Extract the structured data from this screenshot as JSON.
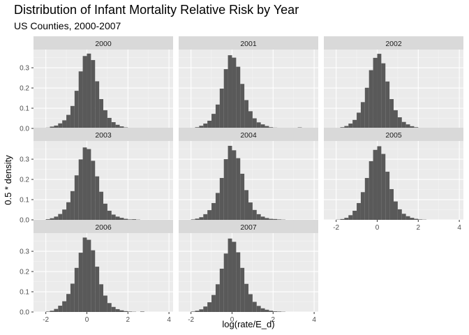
{
  "chart_data": {
    "type": "bar",
    "subtype": "faceted-histogram",
    "title": "Distribution of Infant Mortality Relative Risk by Year",
    "subtitle": "US Counties, 2000-2007",
    "xlabel": "log(rate/E_d)",
    "ylabel": "0.5 * density",
    "xlim": [
      -2.6,
      4.2
    ],
    "ylim": [
      0,
      0.39
    ],
    "x_ticks": [
      -2,
      0,
      2,
      4
    ],
    "y_ticks": [
      0.0,
      0.1,
      0.2,
      0.3
    ],
    "grid": true,
    "bar_color": "#595959",
    "panel_background": "#ebebeb",
    "strip_background": "#d9d9d9",
    "bin_start": -2.2,
    "bin_width": 0.2,
    "facets": [
      {
        "label": "2000",
        "values": [
          0.001,
          0.004,
          0.009,
          0.014,
          0.025,
          0.04,
          0.067,
          0.111,
          0.186,
          0.282,
          0.358,
          0.37,
          0.338,
          0.233,
          0.145,
          0.09,
          0.052,
          0.031,
          0.018,
          0.01,
          0.005,
          0.003,
          0.002,
          0.001,
          0.001,
          0.0,
          0.0,
          0.0,
          0.0,
          0.0,
          0.0
        ]
      },
      {
        "label": "2001",
        "values": [
          0.0,
          0.003,
          0.006,
          0.013,
          0.024,
          0.038,
          0.072,
          0.118,
          0.197,
          0.293,
          0.362,
          0.35,
          0.305,
          0.22,
          0.14,
          0.085,
          0.05,
          0.03,
          0.02,
          0.012,
          0.006,
          0.004,
          0.002,
          0.001,
          0.001,
          0.0,
          0.001,
          0.005,
          0.0,
          0.0,
          0.0
        ]
      },
      {
        "label": "2002",
        "values": [
          0.0,
          0.002,
          0.006,
          0.012,
          0.024,
          0.042,
          0.078,
          0.13,
          0.201,
          0.288,
          0.349,
          0.369,
          0.322,
          0.232,
          0.145,
          0.09,
          0.055,
          0.032,
          0.02,
          0.011,
          0.006,
          0.003,
          0.002,
          0.001,
          0.0,
          0.0,
          0.0,
          0.0,
          0.0,
          0.003,
          0.0
        ]
      },
      {
        "label": "2003",
        "values": [
          0.0,
          0.003,
          0.008,
          0.016,
          0.029,
          0.051,
          0.087,
          0.142,
          0.22,
          0.299,
          0.358,
          0.35,
          0.292,
          0.215,
          0.139,
          0.08,
          0.045,
          0.026,
          0.016,
          0.01,
          0.005,
          0.002,
          0.003,
          0.001,
          0.0,
          0.0,
          0.0,
          0.0,
          0.0,
          0.0,
          0.0
        ]
      },
      {
        "label": "2004",
        "values": [
          0.0,
          0.002,
          0.006,
          0.013,
          0.028,
          0.048,
          0.083,
          0.133,
          0.207,
          0.3,
          0.366,
          0.344,
          0.305,
          0.228,
          0.147,
          0.086,
          0.049,
          0.028,
          0.016,
          0.009,
          0.005,
          0.004,
          0.002,
          0.001,
          0.0,
          0.0,
          0.0,
          0.0,
          0.0,
          0.0,
          0.0
        ]
      },
      {
        "label": "2005",
        "values": [
          0.0,
          0.001,
          0.004,
          0.01,
          0.023,
          0.045,
          0.083,
          0.137,
          0.207,
          0.29,
          0.346,
          0.364,
          0.326,
          0.238,
          0.152,
          0.091,
          0.052,
          0.03,
          0.018,
          0.01,
          0.005,
          0.002,
          0.001,
          0.0,
          0.0,
          0.0,
          0.0,
          0.0,
          0.0,
          0.0,
          0.0
        ]
      },
      {
        "label": "2006",
        "values": [
          0.0,
          0.002,
          0.006,
          0.015,
          0.031,
          0.053,
          0.089,
          0.14,
          0.218,
          0.293,
          0.368,
          0.357,
          0.305,
          0.224,
          0.137,
          0.081,
          0.044,
          0.025,
          0.014,
          0.008,
          0.004,
          0.002,
          0.001,
          0.0,
          0.002,
          0.0,
          0.0,
          0.0,
          0.0,
          0.0,
          0.0
        ]
      },
      {
        "label": "2007",
        "values": [
          0.0,
          0.002,
          0.006,
          0.013,
          0.027,
          0.048,
          0.084,
          0.137,
          0.214,
          0.289,
          0.363,
          0.347,
          0.295,
          0.218,
          0.139,
          0.088,
          0.05,
          0.03,
          0.018,
          0.011,
          0.006,
          0.003,
          0.002,
          0.001,
          0.0,
          0.0,
          0.0,
          0.0,
          0.0,
          0.0,
          0.0
        ]
      }
    ]
  }
}
